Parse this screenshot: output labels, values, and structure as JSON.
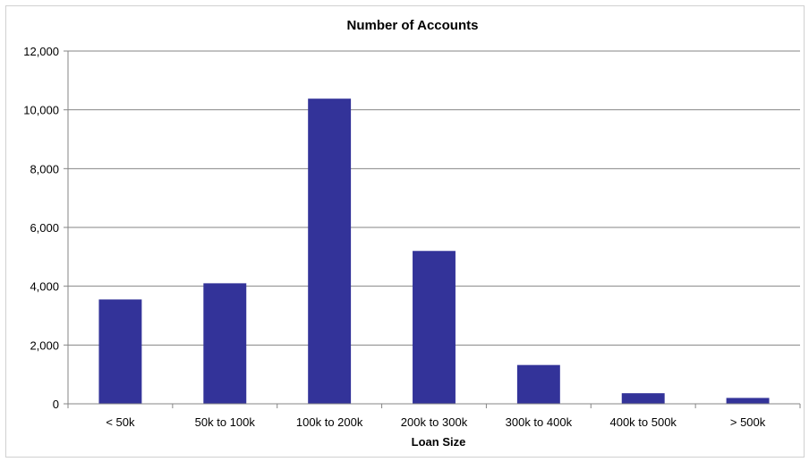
{
  "chart_data": {
    "type": "bar",
    "title": "Number of Accounts",
    "xlabel": "Loan Size",
    "ylabel": "",
    "categories": [
      "< 50k",
      "50k to 100k",
      "100k to 200k",
      "200k to 300k",
      "300k to 400k",
      "400k to 500k",
      "> 500k"
    ],
    "values": [
      3550,
      4100,
      10380,
      5200,
      1320,
      360,
      200
    ],
    "ylim": [
      0,
      12000
    ],
    "yticks": [
      0,
      2000,
      4000,
      6000,
      8000,
      10000,
      12000
    ],
    "ytick_labels": [
      "0",
      "2,000",
      "4,000",
      "6,000",
      "8,000",
      "10,000",
      "12,000"
    ],
    "grid": true,
    "legend": "none",
    "colors": {
      "bar": "#333399",
      "grid": "#868686",
      "axis": "#868686"
    }
  }
}
